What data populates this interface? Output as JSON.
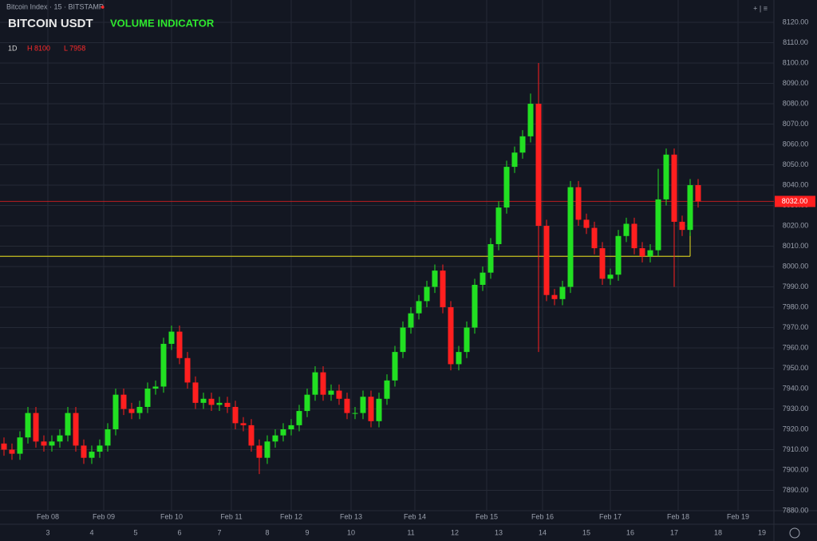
{
  "header": {
    "symbol_line": "Bitcoin Index · 15 · BITSTAMP",
    "live": "●",
    "top_right": "+ | ≡",
    "title": "BITCOIN USDT",
    "indicator": "VOLUME INDICATOR",
    "stats": [
      "1D",
      "H 8100",
      "L 7958"
    ]
  },
  "chart_data": {
    "type": "candlestick",
    "open": [
      7913,
      7910,
      7908,
      7916,
      7928,
      7914,
      7912,
      7914,
      7917,
      7928,
      7912,
      7906,
      7909,
      7912,
      7920,
      7937,
      7930,
      7928,
      7931,
      7940,
      7941,
      7962,
      7968,
      7955,
      7943,
      7933,
      7935,
      7932,
      7933,
      7931,
      7923,
      7922,
      7912,
      7906,
      7914,
      7917,
      7920,
      7922,
      7929,
      7937,
      7948,
      7937,
      7939,
      7935,
      7928,
      7928,
      7936,
      7924,
      7935,
      7944,
      7958,
      7970,
      7977,
      7983,
      7990,
      7998,
      7980,
      7952,
      7958,
      7970,
      7991,
      7997,
      8011,
      8029,
      8049,
      8056,
      8064,
      8080,
      8020,
      7986,
      7984,
      7990,
      8039,
      8023,
      8019,
      8009,
      7994,
      7996,
      8015,
      8021,
      8009,
      8005,
      8008,
      8033,
      8055,
      8022,
      8018,
      8040
    ],
    "high": [
      7916,
      7913,
      7919,
      7931,
      7931,
      7917,
      7917,
      7920,
      7931,
      7931,
      7915,
      7912,
      7915,
      7923,
      7940,
      7940,
      7933,
      7934,
      7943,
      7944,
      7965,
      7971,
      7971,
      7958,
      7946,
      7938,
      7938,
      7936,
      7936,
      7934,
      7926,
      7925,
      7915,
      7917,
      7920,
      7923,
      7925,
      7932,
      7940,
      7951,
      7951,
      7942,
      7942,
      7938,
      7931,
      7939,
      7939,
      7938,
      7947,
      7961,
      7973,
      7980,
      7986,
      7993,
      8001,
      8001,
      7983,
      7961,
      7973,
      7994,
      8000,
      8014,
      8032,
      8052,
      8059,
      8067,
      8085,
      8100,
      8023,
      7989,
      7993,
      8042,
      8042,
      8026,
      8022,
      8012,
      7999,
      8018,
      8024,
      8024,
      8012,
      8011,
      8048,
      8058,
      8058,
      8025,
      8043,
      8043
    ],
    "low": [
      7907,
      7905,
      7905,
      7913,
      7911,
      7909,
      7909,
      7911,
      7914,
      7909,
      7903,
      7903,
      7906,
      7909,
      7917,
      7927,
      7925,
      7925,
      7928,
      7937,
      7938,
      7959,
      7952,
      7940,
      7930,
      7930,
      7929,
      7929,
      7928,
      7920,
      7919,
      7909,
      7898,
      7903,
      7911,
      7914,
      7917,
      7919,
      7926,
      7934,
      7934,
      7934,
      7932,
      7925,
      7925,
      7925,
      7921,
      7921,
      7932,
      7941,
      7955,
      7967,
      7974,
      7980,
      7987,
      7977,
      7949,
      7949,
      7955,
      7967,
      7988,
      7994,
      8008,
      8026,
      8046,
      8053,
      8061,
      7958,
      7983,
      7981,
      7981,
      7987,
      8020,
      8016,
      8006,
      7991,
      7991,
      7993,
      8012,
      8006,
      8002,
      8002,
      8005,
      8030,
      7990,
      8015,
      8015,
      8029
    ],
    "close": [
      7910,
      7908,
      7916,
      7928,
      7914,
      7912,
      7914,
      7917,
      7928,
      7912,
      7906,
      7909,
      7912,
      7920,
      7937,
      7930,
      7928,
      7931,
      7940,
      7941,
      7962,
      7968,
      7955,
      7943,
      7933,
      7935,
      7932,
      7933,
      7931,
      7923,
      7922,
      7912,
      7906,
      7914,
      7917,
      7920,
      7922,
      7929,
      7937,
      7948,
      7937,
      7939,
      7935,
      7928,
      7928,
      7936,
      7924,
      7935,
      7944,
      7958,
      7970,
      7977,
      7983,
      7990,
      7998,
      7980,
      7952,
      7958,
      7970,
      7991,
      7997,
      8011,
      8029,
      8049,
      8056,
      8064,
      8080,
      8020,
      7986,
      7984,
      7990,
      8039,
      8023,
      8019,
      8009,
      7994,
      7996,
      8015,
      8021,
      8009,
      8005,
      8008,
      8033,
      8055,
      8022,
      8018,
      8040,
      8032
    ],
    "up_color": "#22e022",
    "down_color": "#ff1f1f",
    "ylim": [
      7880,
      8131
    ],
    "yticks": [
      {
        "value": 8120,
        "label": "8120.00"
      },
      {
        "value": 8110,
        "label": "8110.00"
      },
      {
        "value": 8100,
        "label": "8100.00"
      },
      {
        "value": 8090,
        "label": "8090.00"
      },
      {
        "value": 8080,
        "label": "8080.00"
      },
      {
        "value": 8070,
        "label": "8070.00"
      },
      {
        "value": 8060,
        "label": "8060.00"
      },
      {
        "value": 8050,
        "label": "8050.00"
      },
      {
        "value": 8040,
        "label": "8040.00"
      },
      {
        "value": 8030,
        "label": "8030.00"
      },
      {
        "value": 8020,
        "label": "8020.00"
      },
      {
        "value": 8010,
        "label": "8010.00"
      },
      {
        "value": 8000,
        "label": "8000.00"
      },
      {
        "value": 7990,
        "label": "7990.00"
      },
      {
        "value": 7980,
        "label": "7980.00"
      },
      {
        "value": 7970,
        "label": "7970.00"
      },
      {
        "value": 7960,
        "label": "7960.00"
      },
      {
        "value": 7950,
        "label": "7950.00"
      },
      {
        "value": 7940,
        "label": "7940.00"
      },
      {
        "value": 7930,
        "label": "7930.00"
      },
      {
        "value": 7920,
        "label": "7920.00"
      },
      {
        "value": 7910,
        "label": "7910.00"
      },
      {
        "value": 7900,
        "label": "7900.00"
      },
      {
        "value": 7890,
        "label": "7890.00"
      },
      {
        "value": 7880,
        "label": "7880.00"
      }
    ],
    "grid": true,
    "last_price": {
      "value": 8032,
      "label": "8032.00"
    },
    "last_price_color": "#ff1f1f",
    "reference_line": 8005,
    "reference_color": "#c8c020"
  },
  "time_axis": {
    "upper": [
      "Feb 08",
      "Feb 09",
      "Feb 10",
      "Feb 11",
      "Feb 12",
      "Feb 13",
      "Feb 14",
      "Feb 15",
      "Feb 16",
      "Feb 17",
      "Feb 18",
      "Feb 19"
    ],
    "lower": [
      "3",
      "4",
      "5",
      "6",
      "7",
      "8",
      "9",
      "10",
      "11",
      "12",
      "13",
      "14",
      "15",
      "16",
      "17",
      "18",
      "19"
    ]
  }
}
